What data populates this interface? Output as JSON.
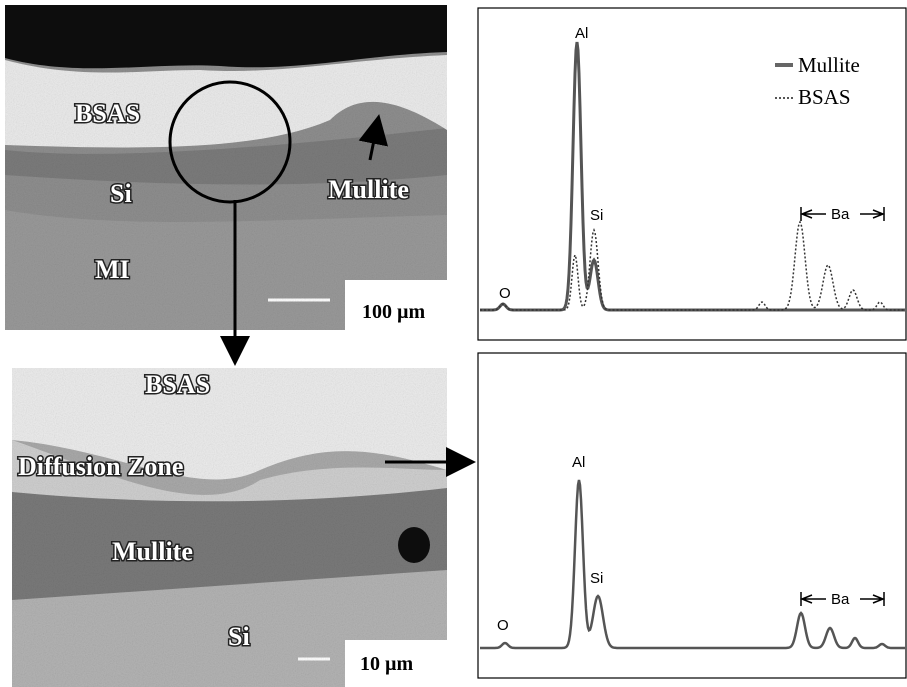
{
  "micrographs": [
    {
      "labels": [
        "BSAS",
        "Si",
        "Mullite",
        "MI"
      ],
      "scale": "100 µm"
    },
    {
      "labels": [
        "BSAS",
        "Diffusion Zone",
        "Mullite",
        "Si"
      ],
      "scale": "10 µm"
    }
  ],
  "spectra": [
    {
      "peaks": [
        "Al",
        "Si",
        "O"
      ],
      "range_label": "Ba",
      "legend": [
        "Mullite",
        "BSAS"
      ]
    },
    {
      "peaks": [
        "Al",
        "Si",
        "O"
      ],
      "range_label": "Ba"
    }
  ]
}
